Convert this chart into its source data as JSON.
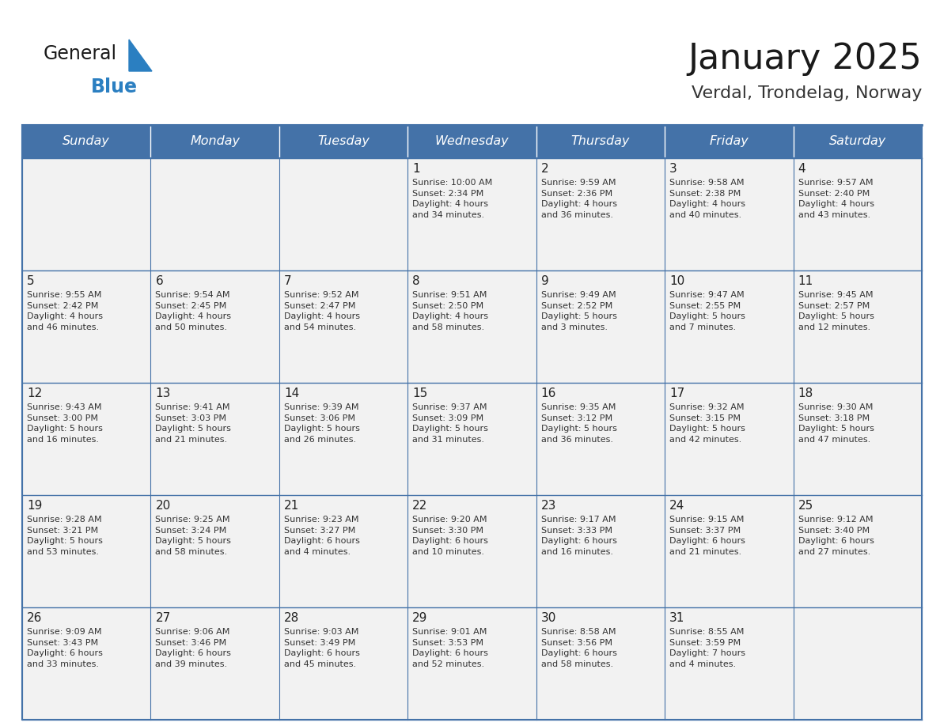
{
  "title": "January 2025",
  "subtitle": "Verdal, Trondelag, Norway",
  "days_of_week": [
    "Sunday",
    "Monday",
    "Tuesday",
    "Wednesday",
    "Thursday",
    "Friday",
    "Saturday"
  ],
  "header_bg": "#4472a8",
  "header_text": "#ffffff",
  "cell_bg": "#f2f2f2",
  "cell_text": "#333333",
  "day_num_color": "#222222",
  "border_color": "#4472a8",
  "row_divider_color": "#4472a8",
  "title_color": "#1a1a1a",
  "subtitle_color": "#333333",
  "logo_general_color": "#1a1a1a",
  "logo_blue_color": "#2b7fc1",
  "calendar_data": [
    [
      {
        "day": null,
        "info": ""
      },
      {
        "day": null,
        "info": ""
      },
      {
        "day": null,
        "info": ""
      },
      {
        "day": 1,
        "info": "Sunrise: 10:00 AM\nSunset: 2:34 PM\nDaylight: 4 hours\nand 34 minutes."
      },
      {
        "day": 2,
        "info": "Sunrise: 9:59 AM\nSunset: 2:36 PM\nDaylight: 4 hours\nand 36 minutes."
      },
      {
        "day": 3,
        "info": "Sunrise: 9:58 AM\nSunset: 2:38 PM\nDaylight: 4 hours\nand 40 minutes."
      },
      {
        "day": 4,
        "info": "Sunrise: 9:57 AM\nSunset: 2:40 PM\nDaylight: 4 hours\nand 43 minutes."
      }
    ],
    [
      {
        "day": 5,
        "info": "Sunrise: 9:55 AM\nSunset: 2:42 PM\nDaylight: 4 hours\nand 46 minutes."
      },
      {
        "day": 6,
        "info": "Sunrise: 9:54 AM\nSunset: 2:45 PM\nDaylight: 4 hours\nand 50 minutes."
      },
      {
        "day": 7,
        "info": "Sunrise: 9:52 AM\nSunset: 2:47 PM\nDaylight: 4 hours\nand 54 minutes."
      },
      {
        "day": 8,
        "info": "Sunrise: 9:51 AM\nSunset: 2:50 PM\nDaylight: 4 hours\nand 58 minutes."
      },
      {
        "day": 9,
        "info": "Sunrise: 9:49 AM\nSunset: 2:52 PM\nDaylight: 5 hours\nand 3 minutes."
      },
      {
        "day": 10,
        "info": "Sunrise: 9:47 AM\nSunset: 2:55 PM\nDaylight: 5 hours\nand 7 minutes."
      },
      {
        "day": 11,
        "info": "Sunrise: 9:45 AM\nSunset: 2:57 PM\nDaylight: 5 hours\nand 12 minutes."
      }
    ],
    [
      {
        "day": 12,
        "info": "Sunrise: 9:43 AM\nSunset: 3:00 PM\nDaylight: 5 hours\nand 16 minutes."
      },
      {
        "day": 13,
        "info": "Sunrise: 9:41 AM\nSunset: 3:03 PM\nDaylight: 5 hours\nand 21 minutes."
      },
      {
        "day": 14,
        "info": "Sunrise: 9:39 AM\nSunset: 3:06 PM\nDaylight: 5 hours\nand 26 minutes."
      },
      {
        "day": 15,
        "info": "Sunrise: 9:37 AM\nSunset: 3:09 PM\nDaylight: 5 hours\nand 31 minutes."
      },
      {
        "day": 16,
        "info": "Sunrise: 9:35 AM\nSunset: 3:12 PM\nDaylight: 5 hours\nand 36 minutes."
      },
      {
        "day": 17,
        "info": "Sunrise: 9:32 AM\nSunset: 3:15 PM\nDaylight: 5 hours\nand 42 minutes."
      },
      {
        "day": 18,
        "info": "Sunrise: 9:30 AM\nSunset: 3:18 PM\nDaylight: 5 hours\nand 47 minutes."
      }
    ],
    [
      {
        "day": 19,
        "info": "Sunrise: 9:28 AM\nSunset: 3:21 PM\nDaylight: 5 hours\nand 53 minutes."
      },
      {
        "day": 20,
        "info": "Sunrise: 9:25 AM\nSunset: 3:24 PM\nDaylight: 5 hours\nand 58 minutes."
      },
      {
        "day": 21,
        "info": "Sunrise: 9:23 AM\nSunset: 3:27 PM\nDaylight: 6 hours\nand 4 minutes."
      },
      {
        "day": 22,
        "info": "Sunrise: 9:20 AM\nSunset: 3:30 PM\nDaylight: 6 hours\nand 10 minutes."
      },
      {
        "day": 23,
        "info": "Sunrise: 9:17 AM\nSunset: 3:33 PM\nDaylight: 6 hours\nand 16 minutes."
      },
      {
        "day": 24,
        "info": "Sunrise: 9:15 AM\nSunset: 3:37 PM\nDaylight: 6 hours\nand 21 minutes."
      },
      {
        "day": 25,
        "info": "Sunrise: 9:12 AM\nSunset: 3:40 PM\nDaylight: 6 hours\nand 27 minutes."
      }
    ],
    [
      {
        "day": 26,
        "info": "Sunrise: 9:09 AM\nSunset: 3:43 PM\nDaylight: 6 hours\nand 33 minutes."
      },
      {
        "day": 27,
        "info": "Sunrise: 9:06 AM\nSunset: 3:46 PM\nDaylight: 6 hours\nand 39 minutes."
      },
      {
        "day": 28,
        "info": "Sunrise: 9:03 AM\nSunset: 3:49 PM\nDaylight: 6 hours\nand 45 minutes."
      },
      {
        "day": 29,
        "info": "Sunrise: 9:01 AM\nSunset: 3:53 PM\nDaylight: 6 hours\nand 52 minutes."
      },
      {
        "day": 30,
        "info": "Sunrise: 8:58 AM\nSunset: 3:56 PM\nDaylight: 6 hours\nand 58 minutes."
      },
      {
        "day": 31,
        "info": "Sunrise: 8:55 AM\nSunset: 3:59 PM\nDaylight: 7 hours\nand 4 minutes."
      },
      {
        "day": null,
        "info": ""
      }
    ]
  ]
}
